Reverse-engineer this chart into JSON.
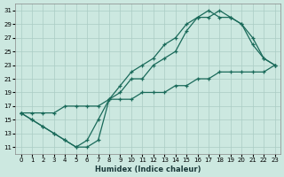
{
  "xlabel": "Humidex (Indice chaleur)",
  "bg_color": "#cce8e0",
  "grid_color": "#aaccc4",
  "line_color": "#1a6a5a",
  "xlim": [
    -0.5,
    23.5
  ],
  "ylim": [
    10,
    32
  ],
  "xticks": [
    0,
    1,
    2,
    3,
    4,
    5,
    6,
    7,
    8,
    9,
    10,
    11,
    12,
    13,
    14,
    15,
    16,
    17,
    18,
    19,
    20,
    21,
    22,
    23
  ],
  "yticks": [
    11,
    13,
    15,
    17,
    19,
    21,
    23,
    25,
    27,
    29,
    31
  ],
  "line1_x": [
    0,
    1,
    2,
    3,
    4,
    5,
    6,
    7,
    8,
    9,
    10,
    11,
    12,
    13,
    14,
    15,
    16,
    17,
    18,
    19,
    20,
    21,
    22,
    23
  ],
  "line1_y": [
    16,
    15,
    14,
    13,
    12,
    11,
    11,
    12,
    18,
    19,
    21,
    21,
    23,
    24,
    25,
    28,
    30,
    30,
    31,
    30,
    29,
    26,
    24,
    23
  ],
  "line2_x": [
    0,
    1,
    2,
    3,
    4,
    5,
    6,
    7,
    8,
    9,
    10,
    11,
    12,
    13,
    14,
    15,
    16,
    17,
    18,
    19,
    20,
    21,
    22,
    23
  ],
  "line2_y": [
    16,
    15,
    14,
    13,
    12,
    11,
    12,
    15,
    18,
    20,
    22,
    23,
    24,
    26,
    27,
    29,
    30,
    31,
    30,
    30,
    29,
    27,
    24,
    23
  ],
  "line3_x": [
    0,
    1,
    2,
    3,
    4,
    5,
    6,
    7,
    8,
    9,
    10,
    11,
    12,
    13,
    14,
    15,
    16,
    17,
    18,
    19,
    20,
    21,
    22,
    23
  ],
  "line3_y": [
    16,
    16,
    16,
    16,
    17,
    17,
    17,
    17,
    18,
    18,
    18,
    19,
    19,
    19,
    20,
    20,
    21,
    21,
    22,
    22,
    22,
    22,
    22,
    23
  ]
}
